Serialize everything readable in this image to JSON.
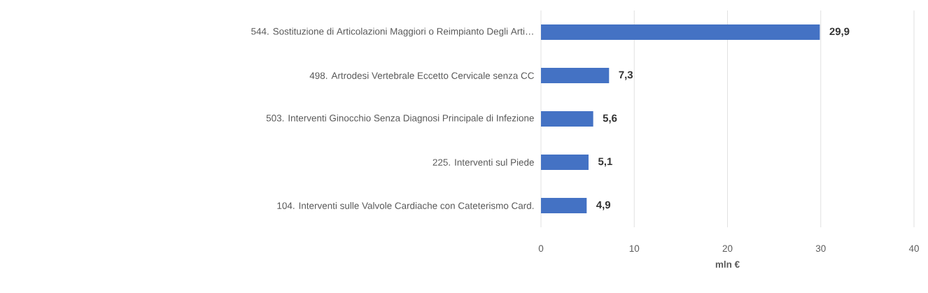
{
  "chart_data": {
    "type": "bar",
    "orientation": "horizontal",
    "xlabel": "mln €",
    "categories": [
      "544. Sostituzione di Articolazioni Maggiori o Reimpianto Degli Arti…",
      "498. Artrodesi Vertebrale Eccetto Cervicale senza CC",
      "503. Interventi Ginocchio Senza Diagnosi Principale di Infezione",
      "225. Interventi sul Piede",
      "104. Interventi sulle Valvole Cardiache con Cateterismo Card."
    ],
    "values": [
      29.9,
      7.3,
      5.6,
      5.1,
      4.9
    ],
    "value_labels": [
      "29,9",
      "7,3",
      "5,6",
      "5,1",
      "4,9"
    ],
    "color": "#4472c4",
    "xlim": [
      0,
      40
    ],
    "xticks": [
      0,
      10,
      20,
      30,
      40
    ],
    "grid": "x"
  }
}
